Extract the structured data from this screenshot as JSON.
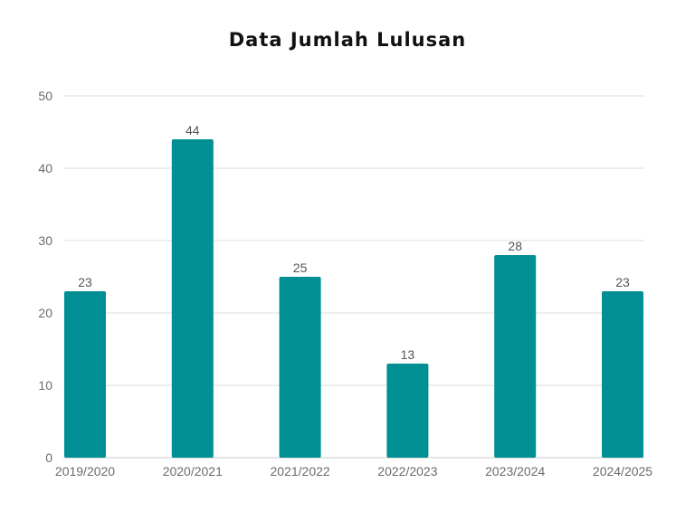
{
  "chart_data": {
    "type": "bar",
    "title": "Data Jumlah Lulusan",
    "xlabel": "",
    "ylabel": "",
    "categories": [
      "2019/2020",
      "2020/2021",
      "2021/2022",
      "2022/2023",
      "2023/2024",
      "2024/2025"
    ],
    "values": [
      23,
      44,
      25,
      13,
      28,
      23
    ],
    "data_labels": [
      "23",
      "44",
      "25",
      "13",
      "28",
      "23"
    ],
    "ylim": [
      0,
      50
    ],
    "yticks": [
      "0",
      "10",
      "20",
      "30",
      "40",
      "50"
    ],
    "grid": true,
    "legend": "none",
    "colors": {
      "bar": "#008f94",
      "grid": "#dedede",
      "axis": "#c8c8c8"
    }
  }
}
